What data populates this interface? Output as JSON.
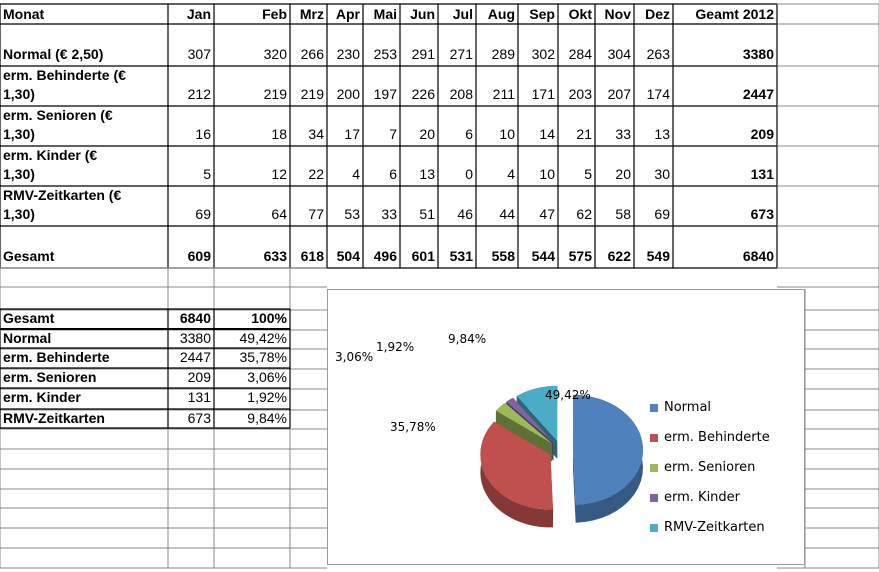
{
  "months_header": [
    "Monat",
    "Jan",
    "Feb",
    "Mrz",
    "Apr",
    "Mai",
    "Jun",
    "Jul",
    "Aug",
    "Sep",
    "Okt",
    "Nov",
    "Dez",
    "Geamt 2012"
  ],
  "rows": [
    {
      "label1": "",
      "label2": "Normal (€ 2,50)",
      "values": [
        "307",
        "320",
        "266",
        "230",
        "253",
        "291",
        "271",
        "289",
        "302",
        "284",
        "304",
        "263"
      ],
      "total": "3380"
    },
    {
      "label1": "erm. Behinderte     (€",
      "label2": "1,30)",
      "values": [
        "212",
        "219",
        "219",
        "200",
        "197",
        "226",
        "208",
        "211",
        "171",
        "203",
        "207",
        "174"
      ],
      "total": "2447"
    },
    {
      "label1": "erm. Senioren        (€",
      "label2": "1,30)",
      "values": [
        "16",
        "18",
        "34",
        "17",
        "7",
        "20",
        "6",
        "10",
        "14",
        "21",
        "33",
        "13"
      ],
      "total": "209"
    },
    {
      "label1": "erm. Kinder             (€",
      "label2": "1,30)",
      "values": [
        "5",
        "12",
        "22",
        "4",
        "6",
        "13",
        "0",
        "4",
        "10",
        "5",
        "20",
        "30"
      ],
      "total": "131"
    },
    {
      "label1": "RMV-Zeitkarten      (€",
      "label2": "1,30)",
      "values": [
        "69",
        "64",
        "77",
        "53",
        "33",
        "51",
        "46",
        "44",
        "47",
        "62",
        "58",
        "69"
      ],
      "total": "673"
    },
    {
      "label1": "",
      "label2": "Gesamt",
      "values": [
        "609",
        "633",
        "618",
        "504",
        "496",
        "601",
        "531",
        "558",
        "544",
        "575",
        "622",
        "549"
      ],
      "total": "6840"
    }
  ],
  "summary": [
    {
      "label": "Gesamt",
      "value": "6840",
      "pct": "100%"
    },
    {
      "label": "Normal",
      "value": "3380",
      "pct": "49,42%"
    },
    {
      "label": "erm. Behinderte",
      "value": "2447",
      "pct": "35,78%"
    },
    {
      "label": "erm. Senioren",
      "value": "209",
      "pct": "3,06%"
    },
    {
      "label": "erm. Kinder",
      "value": "131",
      "pct": "1,92%"
    },
    {
      "label": "RMV-Zeitkarten",
      "value": "673",
      "pct": "9,84%"
    }
  ],
  "chart_data": {
    "type": "pie",
    "title": "",
    "slices": [
      {
        "name": "Normal",
        "value": 49.42,
        "label": "49,42%",
        "color": "#4f81bd"
      },
      {
        "name": "erm. Behinderte",
        "value": 35.78,
        "label": "35,78%",
        "color": "#c0504d"
      },
      {
        "name": "erm. Senioren",
        "value": 3.06,
        "label": "3,06%",
        "color": "#9bbb59"
      },
      {
        "name": "erm. Kinder",
        "value": 1.92,
        "label": "1,92%",
        "color": "#8064a2"
      },
      {
        "name": "RMV-Zeitkarten",
        "value": 9.84,
        "label": "9,84%",
        "color": "#4bacc6"
      }
    ],
    "legend": "right"
  }
}
